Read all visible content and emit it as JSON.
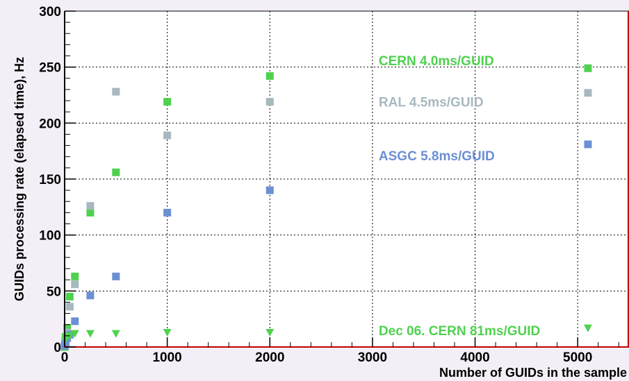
{
  "chart_data": {
    "type": "scatter",
    "title": "",
    "xlabel": "Number of GUIDs in the sample",
    "ylabel": "GUIDs processing rate (elapsed time), Hz",
    "xlim": [
      0,
      5500
    ],
    "ylim": [
      0,
      300
    ],
    "xticks": [
      0,
      1000,
      2000,
      3000,
      4000,
      5000
    ],
    "yticks": [
      0,
      50,
      100,
      150,
      200,
      250,
      300
    ],
    "grid": true,
    "legend": "none",
    "series": [
      {
        "key": "cern",
        "marker": "square",
        "color": "#4fd14f",
        "points": [
          [
            1,
            0
          ],
          [
            5,
            4
          ],
          [
            10,
            9
          ],
          [
            25,
            17
          ],
          [
            50,
            45
          ],
          [
            100,
            63
          ],
          [
            250,
            120
          ],
          [
            500,
            156
          ],
          [
            1000,
            219
          ],
          [
            2000,
            242
          ],
          [
            5100,
            249
          ]
        ]
      },
      {
        "key": "ral",
        "marker": "square",
        "color": "#a7b8bf",
        "points": [
          [
            1,
            1
          ],
          [
            10,
            6
          ],
          [
            25,
            13
          ],
          [
            50,
            36
          ],
          [
            100,
            56
          ],
          [
            250,
            126
          ],
          [
            500,
            228
          ],
          [
            1000,
            189
          ],
          [
            2000,
            219
          ],
          [
            5100,
            227
          ]
        ]
      },
      {
        "key": "asgc",
        "marker": "square",
        "color": "#6c8fd4",
        "points": [
          [
            1,
            1
          ],
          [
            10,
            3
          ],
          [
            25,
            8
          ],
          [
            50,
            11
          ],
          [
            100,
            23
          ],
          [
            250,
            46
          ],
          [
            500,
            63
          ],
          [
            1000,
            120
          ],
          [
            2000,
            140
          ],
          [
            5100,
            181
          ]
        ]
      },
      {
        "key": "dec06",
        "marker": "triangle-down",
        "color": "#4fd14f",
        "points": [
          [
            5,
            6
          ],
          [
            10,
            8
          ],
          [
            25,
            9
          ],
          [
            50,
            10
          ],
          [
            100,
            12
          ],
          [
            250,
            12
          ],
          [
            500,
            12
          ],
          [
            1000,
            13
          ],
          [
            2000,
            13
          ],
          [
            5100,
            17
          ]
        ]
      }
    ],
    "annotations": [
      {
        "text": "CERN 4.0ms/GUID",
        "color": "#4fd14f",
        "x": 3000,
        "y": 256
      },
      {
        "text": "RAL 4.5ms/GUID",
        "color": "#a7b8bf",
        "x": 3000,
        "y": 219
      },
      {
        "text": "ASGC 5.8ms/GUID",
        "color": "#6c8fd4",
        "x": 3000,
        "y": 171
      },
      {
        "text": "Dec 06. CERN 81ms/GUID",
        "color": "#4fd14f",
        "x": 3000,
        "y": 15
      }
    ]
  }
}
